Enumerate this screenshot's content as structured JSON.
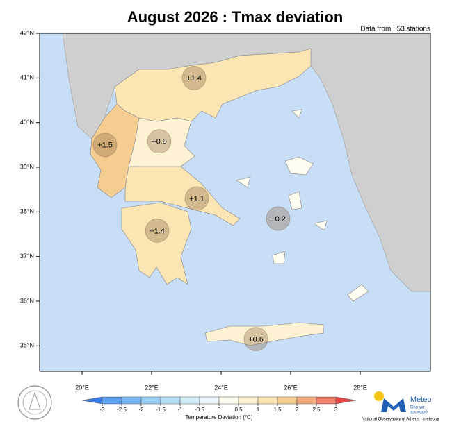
{
  "title": "August 2026 : Tmax deviation",
  "subtitle": "Data from : 53 stations",
  "map": {
    "lon_range": [
      18.78,
      30.02
    ],
    "lat_range": [
      34.43,
      42
    ],
    "lat_ticks": [
      {
        "value": 42,
        "label": "42°N"
      },
      {
        "value": 41,
        "label": "41°N"
      },
      {
        "value": 40,
        "label": "40°N"
      },
      {
        "value": 39,
        "label": "39°N"
      },
      {
        "value": 38,
        "label": "38°N"
      },
      {
        "value": 37,
        "label": "37°N"
      },
      {
        "value": 36,
        "label": "36°N"
      },
      {
        "value": 35,
        "label": "35°N"
      }
    ],
    "lon_ticks": [
      {
        "value": 20,
        "label": "20°E"
      },
      {
        "value": 22,
        "label": "22°E"
      },
      {
        "value": 24,
        "label": "24°E"
      },
      {
        "value": 26,
        "label": "26°E"
      },
      {
        "value": 28,
        "label": "28°E"
      }
    ],
    "regions": [
      {
        "value": 1.4,
        "label": "+1.4",
        "lon": 23.22,
        "lat": 41.0
      },
      {
        "value": 1.5,
        "label": "+1.5",
        "lon": 20.66,
        "lat": 39.5
      },
      {
        "value": 0.9,
        "label": "+0.9",
        "lon": 22.22,
        "lat": 39.58
      },
      {
        "value": 1.1,
        "label": "+1.1",
        "lon": 23.3,
        "lat": 38.3
      },
      {
        "value": 1.4,
        "label": "+1.4",
        "lon": 22.16,
        "lat": 37.58
      },
      {
        "value": 0.2,
        "label": "+0.2",
        "lon": 25.64,
        "lat": 37.85
      },
      {
        "value": 0.6,
        "label": "+0.6",
        "lon": 25.0,
        "lat": 35.15
      }
    ]
  },
  "colorbar": {
    "title": "Temperature Deviation (°C)",
    "ticks": [
      -3,
      -2.5,
      -2,
      -1.5,
      -1,
      -0.5,
      0,
      0.5,
      1,
      1.5,
      2,
      2.5,
      3
    ],
    "colors": [
      "#3a7de6",
      "#5a9ff0",
      "#79b8f3",
      "#98cdf5",
      "#b5def7",
      "#d2ecf8",
      "#ebf7fa",
      "#fffdf0",
      "#fdf3d2",
      "#fbe5b2",
      "#f6cd90",
      "#f3ab7c",
      "#ee7d66",
      "#e64848"
    ]
  },
  "logo": {
    "name": "Meteo",
    "tagline1": "Όλα για",
    "tagline2": "τον καιρό"
  },
  "footer": "National Observatory of Athens - meteo.gr"
}
